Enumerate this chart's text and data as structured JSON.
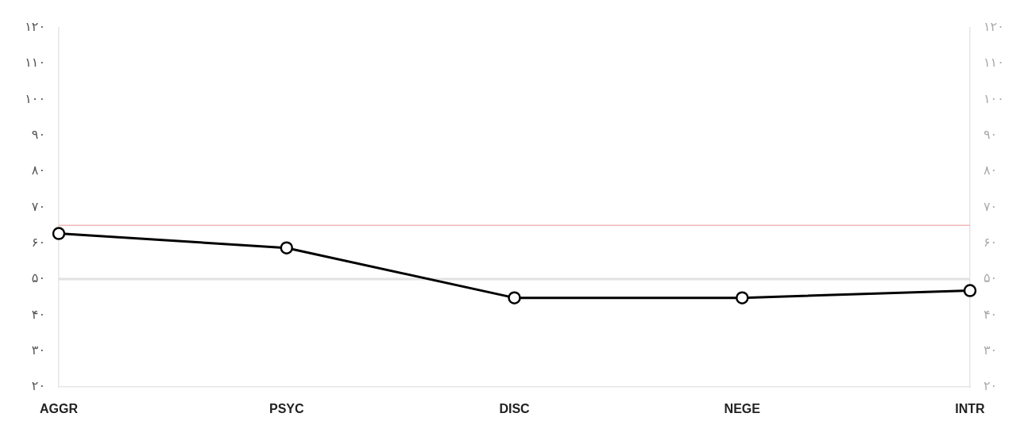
{
  "chart_data": {
    "type": "line",
    "categories": [
      "AGGR",
      "PSYC",
      "DISC",
      "NEGE",
      "INTR"
    ],
    "series": [
      {
        "color": "#000000",
        "values": [
          62.7,
          58.7,
          44.8,
          44.8,
          46.8
        ]
      }
    ],
    "marker": "circle",
    "ylim": [
      20,
      120
    ],
    "yticks": [
      {
        "value": 20,
        "label": "۲۰"
      },
      {
        "value": 30,
        "label": "۳۰"
      },
      {
        "value": 40,
        "label": "۴۰"
      },
      {
        "value": 50,
        "label": "۵۰"
      },
      {
        "value": 60,
        "label": "۶۰"
      },
      {
        "value": 70,
        "label": "۷۰"
      },
      {
        "value": 80,
        "label": "۸۰"
      },
      {
        "value": 90,
        "label": "۹۰"
      },
      {
        "value": 100,
        "label": "۱۰۰"
      },
      {
        "value": 110,
        "label": "۱۱۰"
      },
      {
        "value": 120,
        "label": "۱۲۰"
      }
    ],
    "y2lim": [
      20,
      120
    ],
    "y2ticks": [
      {
        "value": 20,
        "label": "۲۰"
      },
      {
        "value": 30,
        "label": "۳۰"
      },
      {
        "value": 40,
        "label": "۴۰"
      },
      {
        "value": 50,
        "label": "۵۰"
      },
      {
        "value": 60,
        "label": "۶۰"
      },
      {
        "value": 70,
        "label": "۷۰"
      },
      {
        "value": 80,
        "label": "۸۰"
      },
      {
        "value": 90,
        "label": "۹۰"
      },
      {
        "value": 100,
        "label": "۱۰۰"
      },
      {
        "value": 110,
        "label": "۱۱۰"
      },
      {
        "value": 120,
        "label": "۱۲۰"
      }
    ],
    "ref_lines": [
      {
        "axis": "y",
        "value": 65,
        "color": "#f0b8b8"
      },
      {
        "axis": "y",
        "value": 50,
        "color": "#e2e2e2"
      }
    ],
    "grid": false,
    "legend": false
  }
}
